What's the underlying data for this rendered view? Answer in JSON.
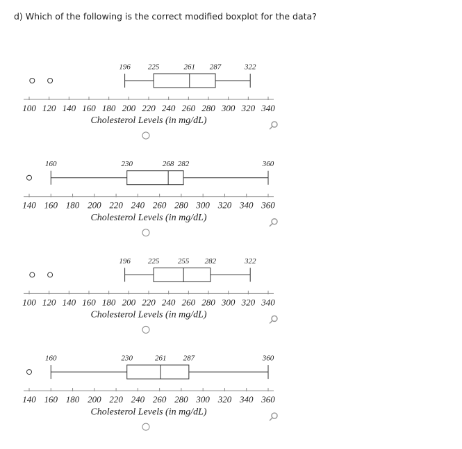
{
  "question": "d) Which of the following is the correct modified boxplot for the data?",
  "chart_data": [
    {
      "type": "boxplot",
      "xlabel": "Cholesterol Levels (in mg/dL)",
      "xlim": [
        100,
        340
      ],
      "xticks": [
        100,
        120,
        140,
        160,
        180,
        200,
        220,
        240,
        260,
        280,
        300,
        320,
        340
      ],
      "min": 196,
      "q1": 225,
      "median": 261,
      "q3": 287,
      "max": 322,
      "outliers": [
        103,
        121
      ]
    },
    {
      "type": "boxplot",
      "xlabel": "Cholesterol Levels (in mg/dL)",
      "xlim": [
        140,
        360
      ],
      "xticks": [
        140,
        160,
        180,
        200,
        220,
        240,
        260,
        280,
        300,
        320,
        340,
        360
      ],
      "min": 160,
      "q1": 230,
      "median": 268,
      "q3": 282,
      "max": 360,
      "outliers": [
        140
      ]
    },
    {
      "type": "boxplot",
      "xlabel": "Cholesterol Levels (in mg/dL)",
      "xlim": [
        100,
        340
      ],
      "xticks": [
        100,
        120,
        140,
        160,
        180,
        200,
        220,
        240,
        260,
        280,
        300,
        320,
        340
      ],
      "min": 196,
      "q1": 225,
      "median": 255,
      "q3": 282,
      "max": 322,
      "outliers": [
        103,
        121
      ]
    },
    {
      "type": "boxplot",
      "xlabel": "Cholesterol Levels (in mg/dL)",
      "xlim": [
        140,
        360
      ],
      "xticks": [
        140,
        160,
        180,
        200,
        220,
        240,
        260,
        280,
        300,
        320,
        340,
        360
      ],
      "min": 160,
      "q1": 230,
      "median": 261,
      "q3": 287,
      "max": 360,
      "outliers": [
        140
      ]
    }
  ]
}
